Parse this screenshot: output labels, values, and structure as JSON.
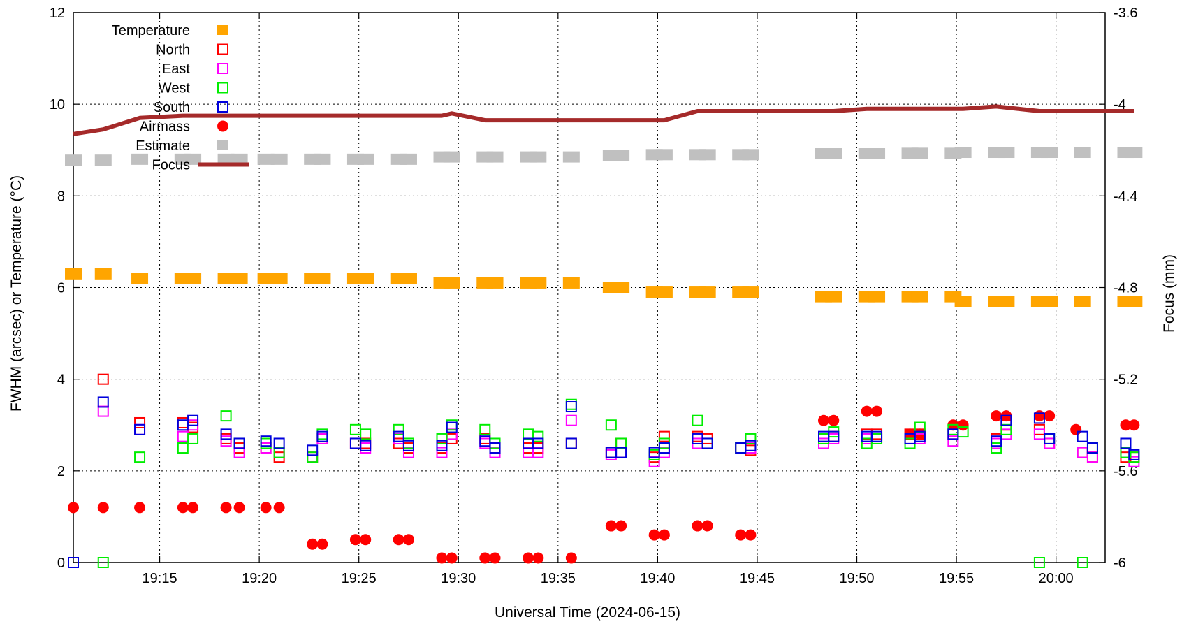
{
  "chart_data": {
    "type": "scatter",
    "xlabel": "Universal Time (2024-06-15)",
    "ylabel": "FWHM (arcsec) or Temperature (°C)",
    "y2label": "Focus (mm)",
    "xlim": [
      "19:10:40",
      "19:62:28"
    ],
    "ylim": [
      0,
      12
    ],
    "y2lim": [
      -6,
      -3.6
    ],
    "x_ticks": [
      "19:15",
      "19:20",
      "19:25",
      "19:30",
      "19:35",
      "19:40",
      "19:45",
      "19:50",
      "19:55",
      "20:00"
    ],
    "y_ticks": [
      "0",
      "2",
      "4",
      "6",
      "8",
      "10",
      "12"
    ],
    "y2_ticks": [
      "-6",
      "-5.6",
      "-5.2",
      "-4.8",
      "-4.4",
      "-4",
      "-3.6"
    ],
    "grid": true,
    "legend_position": "top-left",
    "colors": {
      "temperature": "#ffa500",
      "north": "#ff0000",
      "east": "#ff00ff",
      "west": "#00ee00",
      "south": "#0000dd",
      "airmass": "#ff0000",
      "estimate": "#c0c0c0",
      "focus": "#a52a2a"
    },
    "series": [
      {
        "name": "Temperature",
        "axis": "y1",
        "marker": "filled-square",
        "x": [
          "19:10:40",
          "19:12:10",
          "19:14:00",
          "19:16:10",
          "19:16:40",
          "19:18:20",
          "19:19:00",
          "19:20:20",
          "19:21:00",
          "19:22:40",
          "19:23:10",
          "19:24:50",
          "19:25:20",
          "19:27:00",
          "19:27:30",
          "19:29:10",
          "19:29:40",
          "19:31:20",
          "19:31:50",
          "19:33:30",
          "19:34:00",
          "19:35:40",
          "19:37:40",
          "19:38:10",
          "19:39:50",
          "19:40:20",
          "19:42:00",
          "19:42:30",
          "19:44:10",
          "19:44:40",
          "19:48:20",
          "19:48:50",
          "19:50:30",
          "19:51:00",
          "19:52:40",
          "19:53:10",
          "19:54:50",
          "19:55:20",
          "19:57:00",
          "19:57:30",
          "19:59:10",
          "19:59:40",
          "20:01:20",
          "20:03:30",
          "20:03:55"
        ],
        "values": [
          6.3,
          6.3,
          6.2,
          6.2,
          6.2,
          6.2,
          6.2,
          6.2,
          6.2,
          6.2,
          6.2,
          6.2,
          6.2,
          6.2,
          6.2,
          6.1,
          6.1,
          6.1,
          6.1,
          6.1,
          6.1,
          6.1,
          6.0,
          6.0,
          5.9,
          5.9,
          5.9,
          5.9,
          5.9,
          5.9,
          5.8,
          5.8,
          5.8,
          5.8,
          5.8,
          5.8,
          5.8,
          5.7,
          5.7,
          5.7,
          5.7,
          5.7,
          5.7,
          5.7,
          5.7
        ]
      },
      {
        "name": "North",
        "axis": "y1",
        "marker": "open-square",
        "x": [
          "19:12:10",
          "19:14:00",
          "19:16:10",
          "19:16:40",
          "19:18:20",
          "19:19:00",
          "19:20:20",
          "19:21:00",
          "19:22:40",
          "19:23:10",
          "19:24:50",
          "19:25:20",
          "19:27:00",
          "19:27:30",
          "19:29:10",
          "19:29:40",
          "19:31:20",
          "19:31:50",
          "19:33:30",
          "19:34:00",
          "19:35:40",
          "19:37:40",
          "19:38:10",
          "19:39:50",
          "19:40:20",
          "19:42:00",
          "19:42:30",
          "19:44:10",
          "19:44:40",
          "19:48:20",
          "19:48:50",
          "19:50:30",
          "19:51:00",
          "19:52:40",
          "19:53:10",
          "19:54:50",
          "19:57:00",
          "19:57:30",
          "19:59:10",
          "19:59:40",
          "20:01:20",
          "20:01:50",
          "20:03:30",
          "20:03:55"
        ],
        "values": [
          4.0,
          3.05,
          3.05,
          2.95,
          2.7,
          2.5,
          2.5,
          2.3,
          2.3,
          2.7,
          2.6,
          2.6,
          2.6,
          2.5,
          2.5,
          2.7,
          2.7,
          2.5,
          2.5,
          2.5,
          2.6,
          2.4,
          2.6,
          2.3,
          2.75,
          2.75,
          2.7,
          2.5,
          2.45,
          2.7,
          2.75,
          2.8,
          2.8,
          2.8,
          2.8,
          2.8,
          2.7,
          3.0,
          2.9,
          2.6,
          2.4,
          2.3,
          2.3,
          2.3
        ]
      },
      {
        "name": "East",
        "axis": "y1",
        "marker": "open-square",
        "x": [
          "19:12:10",
          "19:14:00",
          "19:16:10",
          "19:16:40",
          "19:18:20",
          "19:19:00",
          "19:20:20",
          "19:21:00",
          "19:22:40",
          "19:23:10",
          "19:24:50",
          "19:25:20",
          "19:27:00",
          "19:27:30",
          "19:29:10",
          "19:29:40",
          "19:31:20",
          "19:31:50",
          "19:33:30",
          "19:34:00",
          "19:35:40",
          "19:37:40",
          "19:38:10",
          "19:39:50",
          "19:40:20",
          "19:42:00",
          "19:42:30",
          "19:44:10",
          "19:44:40",
          "19:48:20",
          "19:48:50",
          "19:50:30",
          "19:51:00",
          "19:52:40",
          "19:53:10",
          "19:54:50",
          "19:57:00",
          "19:57:30",
          "19:59:10",
          "19:59:40",
          "20:01:20",
          "20:01:50",
          "20:03:30",
          "20:03:55"
        ],
        "values": [
          3.3,
          2.9,
          2.75,
          3.0,
          2.65,
          2.4,
          2.5,
          2.4,
          2.3,
          2.7,
          2.6,
          2.5,
          2.7,
          2.4,
          2.4,
          2.8,
          2.6,
          2.4,
          2.4,
          2.4,
          3.1,
          2.35,
          2.4,
          2.2,
          2.4,
          2.6,
          2.6,
          2.5,
          2.5,
          2.6,
          2.7,
          2.7,
          2.7,
          2.7,
          2.7,
          2.65,
          2.6,
          2.8,
          2.8,
          2.6,
          2.4,
          2.3,
          2.4,
          2.2
        ]
      },
      {
        "name": "West",
        "axis": "y1",
        "marker": "open-square",
        "x": [
          "19:12:10",
          "19:14:00",
          "19:16:10",
          "19:16:40",
          "19:18:20",
          "19:19:00",
          "19:20:20",
          "19:21:00",
          "19:22:40",
          "19:23:10",
          "19:24:50",
          "19:25:20",
          "19:27:00",
          "19:27:30",
          "19:29:10",
          "19:29:40",
          "19:31:20",
          "19:31:50",
          "19:33:30",
          "19:34:00",
          "19:35:40",
          "19:37:40",
          "19:38:10",
          "19:39:50",
          "19:40:20",
          "19:42:00",
          "19:42:30",
          "19:44:10",
          "19:44:40",
          "19:48:20",
          "19:48:50",
          "19:50:30",
          "19:51:00",
          "19:52:40",
          "19:53:10",
          "19:54:50",
          "19:55:20",
          "19:57:00",
          "19:57:30",
          "19:59:10",
          "19:59:40",
          "20:01:20",
          "20:01:50",
          "20:03:30",
          "20:03:55"
        ],
        "values": [
          0.0,
          2.3,
          2.5,
          2.7,
          3.2,
          2.6,
          2.6,
          2.4,
          2.3,
          2.8,
          2.9,
          2.8,
          2.9,
          2.6,
          2.7,
          3.0,
          2.9,
          2.6,
          2.8,
          2.75,
          3.45,
          3.0,
          2.6,
          2.35,
          2.6,
          3.1,
          2.6,
          2.5,
          2.7,
          2.7,
          2.85,
          2.6,
          2.7,
          2.6,
          2.95,
          2.9,
          2.85,
          2.5,
          2.9,
          0.0,
          2.7,
          0.0,
          2.5,
          2.4,
          2.3
        ]
      },
      {
        "name": "South",
        "axis": "y1",
        "marker": "open-square",
        "x": [
          "19:10:40",
          "19:12:10",
          "19:14:00",
          "19:16:10",
          "19:16:40",
          "19:18:20",
          "19:19:00",
          "19:20:20",
          "19:21:00",
          "19:22:40",
          "19:23:10",
          "19:24:50",
          "19:25:20",
          "19:27:00",
          "19:27:30",
          "19:29:10",
          "19:29:40",
          "19:31:20",
          "19:31:50",
          "19:33:30",
          "19:34:00",
          "19:35:40",
          "19:35:40",
          "19:37:40",
          "19:38:10",
          "19:39:50",
          "19:40:20",
          "19:42:00",
          "19:42:30",
          "19:44:10",
          "19:44:40",
          "19:48:20",
          "19:48:50",
          "19:50:30",
          "19:51:00",
          "19:52:40",
          "19:53:10",
          "19:54:50",
          "19:57:00",
          "19:57:30",
          "19:59:10",
          "19:59:40",
          "20:01:20",
          "20:01:50",
          "20:03:30",
          "20:03:55"
        ],
        "values": [
          0.0,
          3.5,
          2.9,
          3.0,
          3.1,
          2.8,
          2.6,
          2.65,
          2.6,
          2.45,
          2.75,
          2.6,
          2.55,
          2.75,
          2.55,
          2.55,
          2.95,
          2.65,
          2.5,
          2.6,
          2.6,
          2.6,
          3.4,
          2.4,
          2.4,
          2.4,
          2.5,
          2.7,
          2.6,
          2.5,
          2.55,
          2.75,
          2.75,
          2.75,
          2.75,
          2.7,
          2.75,
          2.8,
          2.65,
          3.1,
          3.15,
          2.7,
          2.75,
          2.5,
          2.6,
          2.35
        ]
      },
      {
        "name": "Airmass",
        "axis": "y1",
        "marker": "filled-circle",
        "x": [
          "19:10:40",
          "19:12:10",
          "19:14:00",
          "19:16:10",
          "19:16:40",
          "19:18:20",
          "19:19:00",
          "19:20:20",
          "19:21:00",
          "19:22:40",
          "19:23:10",
          "19:24:50",
          "19:25:20",
          "19:27:00",
          "19:27:30",
          "19:29:10",
          "19:29:40",
          "19:31:20",
          "19:31:50",
          "19:33:30",
          "19:34:00",
          "19:35:40",
          "19:37:40",
          "19:38:10",
          "19:39:50",
          "19:40:20",
          "19:42:00",
          "19:42:30",
          "19:44:10",
          "19:44:40",
          "19:48:20",
          "19:48:50",
          "19:50:30",
          "19:51:00",
          "19:52:40",
          "19:53:10",
          "19:54:50",
          "19:55:20",
          "19:57:00",
          "19:57:30",
          "19:59:10",
          "19:59:40",
          "20:01:00",
          "20:03:30",
          "20:03:55"
        ],
        "values": [
          1.2,
          1.2,
          1.2,
          1.2,
          1.2,
          1.2,
          1.2,
          1.2,
          1.2,
          0.4,
          0.4,
          0.5,
          0.5,
          0.5,
          0.5,
          0.1,
          0.1,
          0.1,
          0.1,
          0.1,
          0.1,
          0.1,
          0.8,
          0.8,
          0.6,
          0.6,
          0.8,
          0.8,
          0.6,
          0.6,
          3.1,
          3.1,
          3.3,
          3.3,
          2.8,
          2.8,
          3.0,
          3.0,
          3.2,
          3.2,
          3.2,
          3.2,
          2.9,
          3.0,
          3.0
        ]
      },
      {
        "name": "Estimate",
        "axis": "y1",
        "marker": "filled-square",
        "x": [
          "19:10:40",
          "19:12:10",
          "19:14:00",
          "19:16:10",
          "19:16:40",
          "19:18:20",
          "19:19:00",
          "19:20:20",
          "19:21:00",
          "19:22:40",
          "19:23:10",
          "19:24:50",
          "19:25:20",
          "19:27:00",
          "19:27:30",
          "19:29:10",
          "19:29:40",
          "19:31:20",
          "19:31:50",
          "19:33:30",
          "19:34:00",
          "19:35:40",
          "19:37:40",
          "19:38:10",
          "19:39:50",
          "19:40:20",
          "19:42:00",
          "19:42:30",
          "19:44:10",
          "19:44:40",
          "19:48:20",
          "19:48:50",
          "19:50:30",
          "19:51:00",
          "19:52:40",
          "19:53:10",
          "19:54:50",
          "19:55:20",
          "19:57:00",
          "19:57:30",
          "19:59:10",
          "19:59:40",
          "20:01:20",
          "20:03:30",
          "20:03:55"
        ],
        "values": [
          8.78,
          8.78,
          8.8,
          8.8,
          8.8,
          8.8,
          8.8,
          8.8,
          8.8,
          8.8,
          8.8,
          8.8,
          8.8,
          8.8,
          8.8,
          8.85,
          8.85,
          8.85,
          8.85,
          8.85,
          8.85,
          8.85,
          8.88,
          8.88,
          8.9,
          8.9,
          8.9,
          8.9,
          8.9,
          8.9,
          8.92,
          8.92,
          8.92,
          8.92,
          8.93,
          8.93,
          8.93,
          8.95,
          8.95,
          8.95,
          8.95,
          8.95,
          8.95,
          8.95,
          8.95
        ]
      },
      {
        "name": "Focus",
        "axis": "y2",
        "marker": "line",
        "x": [
          "19:10:40",
          "19:12:10",
          "19:14:00",
          "19:16:10",
          "19:20:20",
          "19:27:30",
          "19:29:10",
          "19:29:40",
          "19:31:20",
          "19:35:40",
          "19:37:40",
          "19:40:20",
          "19:42:00",
          "19:48:50",
          "19:50:30",
          "19:55:20",
          "19:57:00",
          "19:59:10",
          "20:03:55"
        ],
        "values": [
          -4.13,
          -4.11,
          -4.06,
          -4.05,
          -4.05,
          -4.05,
          -4.05,
          -4.04,
          -4.07,
          -4.07,
          -4.07,
          -4.07,
          -4.03,
          -4.03,
          -4.02,
          -4.02,
          -4.01,
          -4.03,
          -4.03
        ]
      }
    ]
  }
}
